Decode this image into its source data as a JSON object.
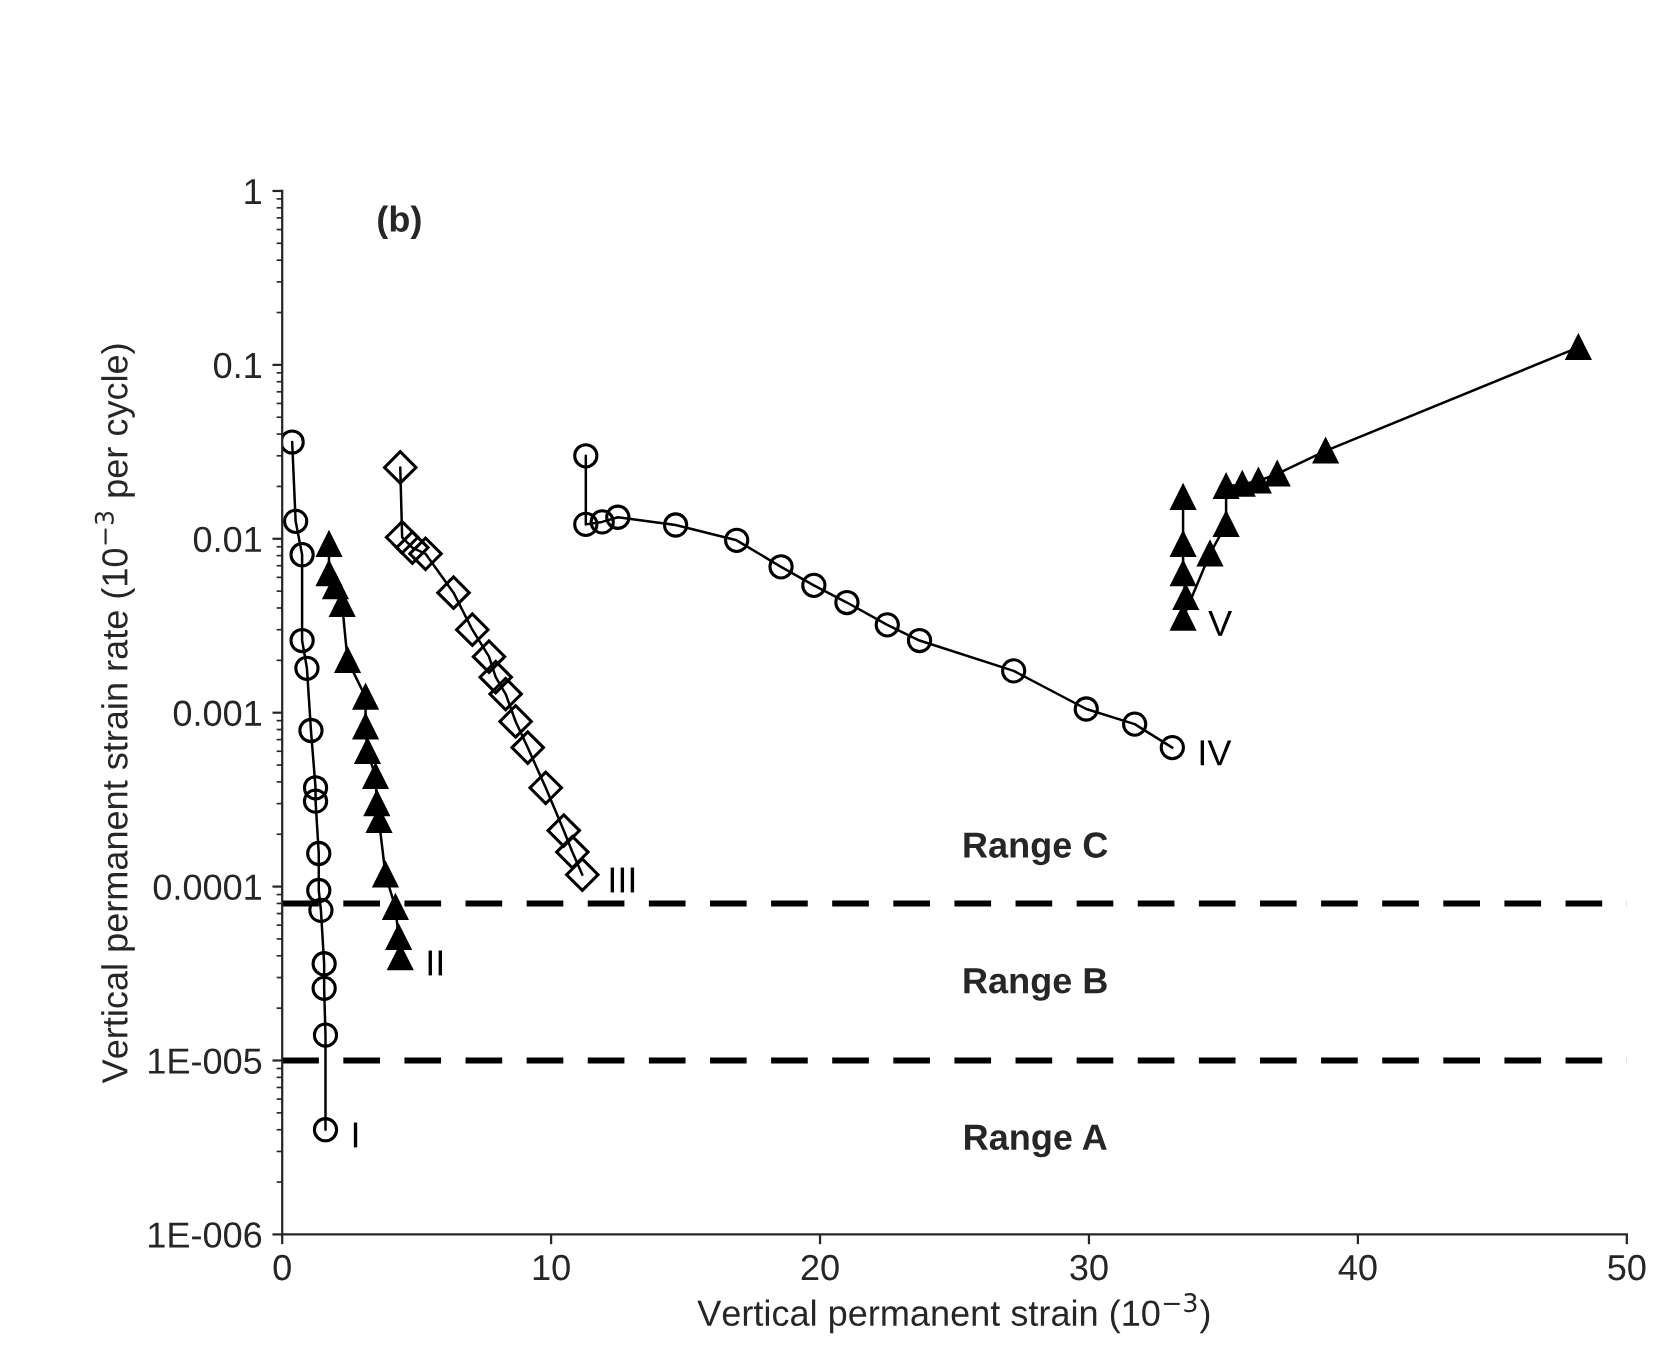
{
  "chart_data": {
    "type": "line",
    "xlabel": "Vertical permanent strain (10$^{−3}$)",
    "ylabel": "Vertical permanent strain rate (10$^{−3}$ per cycle)",
    "log": "y",
    "grid": false,
    "legend": false,
    "xlim": [
      0,
      50
    ],
    "xticks": [
      0,
      10,
      20,
      30,
      40,
      50
    ],
    "ylim": [
      1e-06,
      1
    ],
    "yticks": [
      {
        "value": 1e-06,
        "label": "1E-006"
      },
      {
        "value": 1e-05,
        "label": "1E-005"
      },
      {
        "value": 0.0001,
        "label": "0.0001"
      },
      {
        "value": 0.001,
        "label": "0.001"
      },
      {
        "value": 0.01,
        "label": "0.01"
      },
      {
        "value": 0.1,
        "label": "0.1"
      },
      {
        "value": 1,
        "label": "1"
      }
    ],
    "series": [
      {
        "name": "I",
        "color": "#000000",
        "marker": "circle",
        "x": [
          0.37,
          0.5,
          0.74,
          0.74,
          0.92,
          1.07,
          1.24,
          1.24,
          1.36,
          1.36,
          1.44,
          1.56,
          1.56,
          1.61,
          1.61
        ],
        "values": [
          0.036,
          0.0126,
          0.0081,
          0.0026,
          0.0018,
          0.00079,
          0.00037,
          0.00031,
          0.000155,
          9.5e-05,
          7.3e-05,
          3.6e-05,
          2.6e-05,
          1.4e-05,
          4e-06
        ]
      },
      {
        "name": "II",
        "color": "#000000",
        "marker": "triangle",
        "x": [
          1.74,
          1.74,
          1.98,
          2.23,
          2.43,
          3.1,
          3.1,
          3.17,
          3.47,
          3.52,
          3.6,
          3.84,
          4.21,
          4.33,
          4.39
        ],
        "values": [
          0.0093,
          0.0063,
          0.0053,
          0.0042,
          0.002,
          0.00123,
          0.00083,
          0.0006,
          0.00043,
          0.0003,
          0.00024,
          0.000117,
          7.6e-05,
          5.1e-05,
          3.9e-05
        ]
      },
      {
        "name": "III",
        "color": "#000000",
        "marker": "diamond",
        "x": [
          4.39,
          4.46,
          4.84,
          5.33,
          6.37,
          7.07,
          7.69,
          7.94,
          8.31,
          8.68,
          9.13,
          9.8,
          10.47,
          10.79,
          11.16
        ],
        "values": [
          0.0257,
          0.0102,
          0.0089,
          0.0082,
          0.0049,
          0.003,
          0.0021,
          0.0016,
          0.00128,
          0.00089,
          0.00063,
          0.00037,
          0.00021,
          0.000158,
          0.000117
        ]
      },
      {
        "name": "IV",
        "color": "#000000",
        "marker": "circle",
        "x": [
          11.29,
          11.29,
          11.9,
          12.48,
          14.63,
          16.9,
          18.55,
          19.77,
          21.0,
          22.5,
          23.7,
          27.2,
          29.9,
          31.7,
          33.1
        ],
        "values": [
          0.03,
          0.0121,
          0.0125,
          0.0133,
          0.012,
          0.0098,
          0.0069,
          0.0054,
          0.0043,
          0.0032,
          0.0026,
          0.00174,
          0.00105,
          0.00086,
          0.00063
        ]
      },
      {
        "name": "V",
        "color": "#000000",
        "marker": "triangle",
        "x": [
          33.5,
          33.5,
          33.5,
          33.6,
          33.5,
          34.5,
          35.1,
          35.1,
          35.7,
          36.3,
          37.0,
          38.8,
          48.2
        ],
        "values": [
          0.0173,
          0.0093,
          0.0063,
          0.0046,
          0.0035,
          0.0082,
          0.0121,
          0.02,
          0.0206,
          0.0215,
          0.0236,
          0.032,
          0.126
        ]
      }
    ],
    "ref_lines": [
      {
        "axis": "y",
        "value": 8e-05,
        "color": "#000000",
        "line_style": "dashed"
      },
      {
        "axis": "y",
        "value": 1e-05,
        "color": "#000000",
        "line_style": "dashed"
      }
    ],
    "annotations": [
      "(b)",
      "Range C",
      "Range B",
      "Range A"
    ]
  }
}
